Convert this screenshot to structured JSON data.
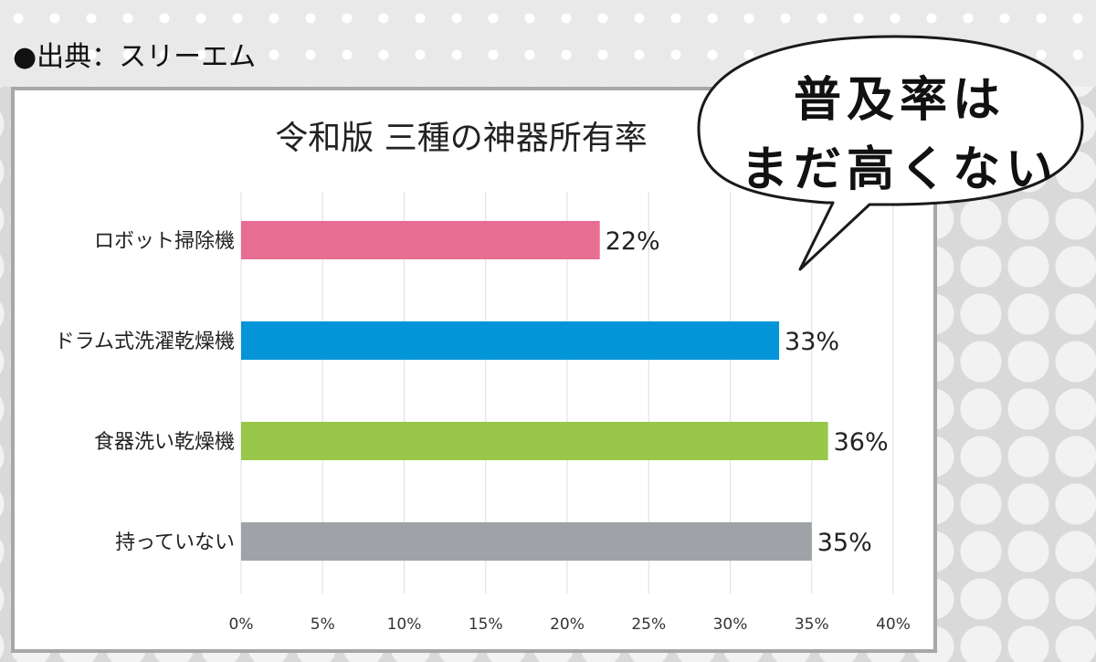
{
  "source_label": "●出典：スリーエム",
  "callout": {
    "line1": "普及率は",
    "line2": "まだ高くない"
  },
  "colors": {
    "pink": "#e86d93",
    "blue": "#0494d8",
    "green": "#98c74a",
    "gray": "#9fa3a7"
  },
  "chart_data": {
    "type": "bar",
    "orientation": "horizontal",
    "title": "令和版 三種の神器所有率",
    "categories": [
      "ロボット掃除機",
      "ドラム式洗濯乾燥機",
      "食器洗い乾燥機",
      "持っていない"
    ],
    "values": [
      22,
      33,
      36,
      35
    ],
    "value_labels": [
      "22%",
      "33%",
      "36%",
      "35%"
    ],
    "bar_colors": [
      "#e86d93",
      "#0494d8",
      "#98c74a",
      "#9fa3a7"
    ],
    "xlim": [
      0,
      40
    ],
    "x_ticks": [
      0,
      5,
      10,
      15,
      20,
      25,
      30,
      35,
      40
    ],
    "x_tick_labels": [
      "0%",
      "5%",
      "10%",
      "15%",
      "20%",
      "25%",
      "30%",
      "35%",
      "40%"
    ],
    "grid": true,
    "xlabel": "",
    "ylabel": ""
  }
}
